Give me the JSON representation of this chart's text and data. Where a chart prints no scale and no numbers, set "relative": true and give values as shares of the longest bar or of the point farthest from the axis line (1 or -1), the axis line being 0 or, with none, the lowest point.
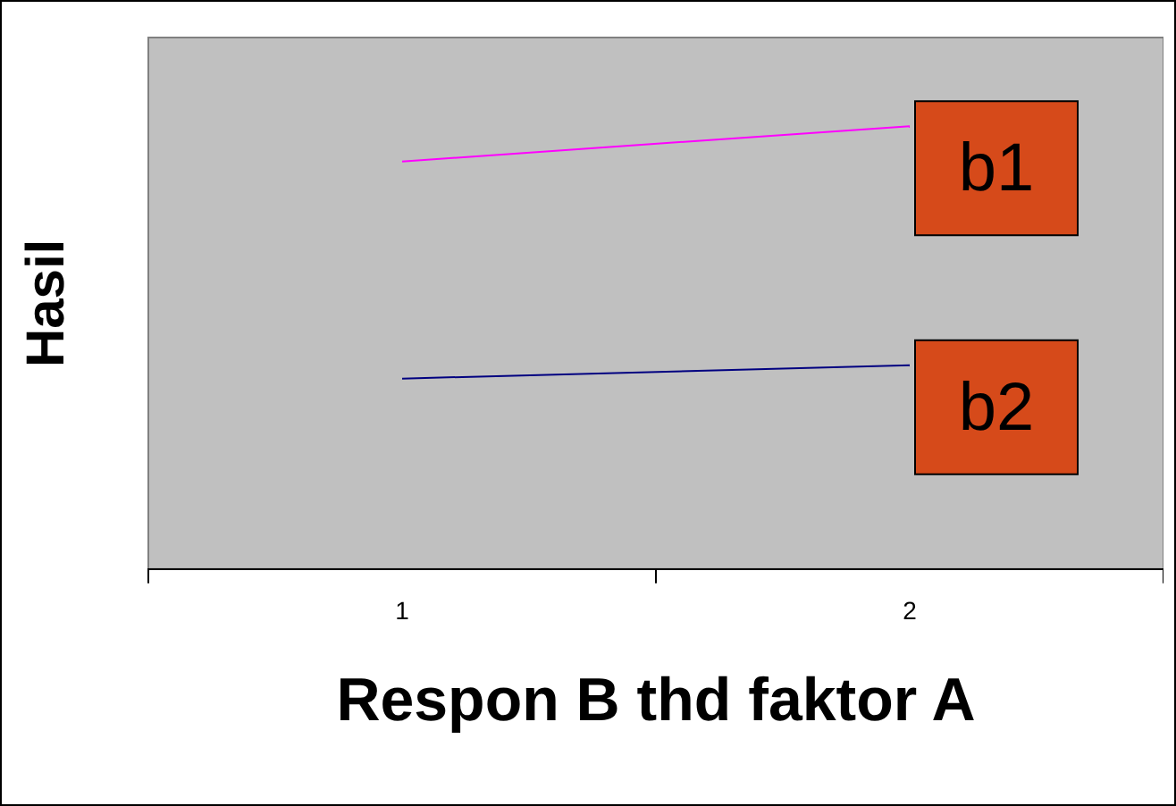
{
  "chart_data": {
    "type": "line",
    "relative": true,
    "xlabel": "Respon B thd faktor A",
    "ylabel": "Hasil",
    "categories": [
      "1",
      "2"
    ],
    "series": [
      {
        "name": "b1",
        "color": "#ff00ff",
        "values": [
          0.92,
          1
        ]
      },
      {
        "name": "b2",
        "color": "#000080",
        "values": [
          0.43,
          0.46
        ]
      }
    ]
  }
}
